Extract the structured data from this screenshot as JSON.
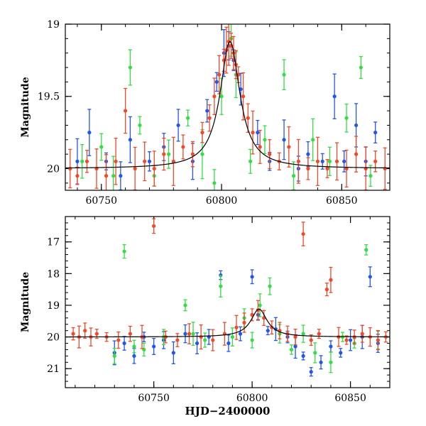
{
  "chart_data": [
    {
      "type": "scatter",
      "ylabel": "Magnitude",
      "xlabel": "",
      "xlim": [
        60735,
        60870
      ],
      "ylim": [
        19.0,
        20.15
      ],
      "y_inverted": true,
      "x_ticks": [
        60750,
        60800,
        60850
      ],
      "y_ticks": [
        19,
        19.5,
        20
      ],
      "x_tick_labels": [
        "60750",
        "60800",
        "60850"
      ],
      "y_tick_labels": [
        "19",
        "19.5",
        "20"
      ],
      "grid": false,
      "legend": "none",
      "model_curve": {
        "baseline_mag": 20.0,
        "peak_mag": 19.12,
        "peak_hjd": 60803.5,
        "timescale_days": 5
      },
      "series": [
        {
          "color": "#2255ee",
          "points": [
            [
              60740,
              19.95
            ],
            [
              60745,
              19.75
            ],
            [
              60752,
              19.95
            ],
            [
              60758,
              20.05
            ],
            [
              60762,
              19.8
            ],
            [
              60770,
              19.95
            ],
            [
              60776,
              19.85
            ],
            [
              60782,
              19.7
            ],
            [
              60788,
              19.95
            ],
            [
              60794,
              19.6
            ],
            [
              60798,
              19.4
            ],
            [
              60801,
              19.2
            ],
            [
              60803,
              19.15
            ],
            [
              60805,
              19.25
            ],
            [
              60808,
              19.45
            ],
            [
              60815,
              19.75
            ],
            [
              60820,
              19.95
            ],
            [
              60826,
              19.8
            ],
            [
              60832,
              20.0
            ],
            [
              60836,
              19.9
            ],
            [
              60842,
              19.95
            ],
            [
              60847,
              19.5
            ],
            [
              60851,
              19.95
            ],
            [
              60856,
              19.7
            ],
            [
              60860,
              19.95
            ],
            [
              60864,
              19.75
            ]
          ]
        },
        {
          "color": "#33dd44",
          "points": [
            [
              60742,
              19.95
            ],
            [
              60750,
              19.85
            ],
            [
              60755,
              20.05
            ],
            [
              60762,
              19.3
            ],
            [
              60766,
              19.7
            ],
            [
              60772,
              20.05
            ],
            [
              60778,
              19.9
            ],
            [
              60786,
              19.65
            ],
            [
              60792,
              19.9
            ],
            [
              60797,
              20.1
            ],
            [
              60800,
              19.5
            ],
            [
              60804,
              19.1
            ],
            [
              60806,
              19.35
            ],
            [
              60812,
              19.95
            ],
            [
              60818,
              19.8
            ],
            [
              60826,
              19.35
            ],
            [
              60830,
              20.05
            ],
            [
              60838,
              19.8
            ],
            [
              60845,
              19.95
            ],
            [
              60852,
              19.65
            ],
            [
              60858,
              19.3
            ],
            [
              60862,
              20.05
            ]
          ]
        },
        {
          "color": "#f04828",
          "points": [
            [
              60737,
              20.0
            ],
            [
              60740,
              20.05
            ],
            [
              60744,
              19.95
            ],
            [
              60748,
              20.0
            ],
            [
              60752,
              20.05
            ],
            [
              60756,
              19.95
            ],
            [
              60760,
              19.6
            ],
            [
              60764,
              20.0
            ],
            [
              60768,
              19.95
            ],
            [
              60772,
              20.0
            ],
            [
              60776,
              19.9
            ],
            [
              60780,
              19.95
            ],
            [
              60784,
              19.85
            ],
            [
              60788,
              19.9
            ],
            [
              60792,
              19.75
            ],
            [
              60795,
              19.65
            ],
            [
              60797,
              19.5
            ],
            [
              60799,
              19.35
            ],
            [
              60801,
              19.25
            ],
            [
              60802,
              19.18
            ],
            [
              60803,
              19.12
            ],
            [
              60804,
              19.15
            ],
            [
              60805,
              19.2
            ],
            [
              60806,
              19.28
            ],
            [
              60807,
              19.35
            ],
            [
              60809,
              19.5
            ],
            [
              60811,
              19.65
            ],
            [
              60813,
              19.75
            ],
            [
              60816,
              19.85
            ],
            [
              60820,
              19.9
            ],
            [
              60824,
              19.95
            ],
            [
              60828,
              19.85
            ],
            [
              60832,
              19.95
            ],
            [
              60836,
              20.0
            ],
            [
              60840,
              19.95
            ],
            [
              60844,
              20.0
            ],
            [
              60848,
              19.95
            ],
            [
              60852,
              20.0
            ],
            [
              60856,
              19.9
            ],
            [
              60860,
              20.0
            ],
            [
              60864,
              19.95
            ],
            [
              60868,
              20.0
            ]
          ]
        }
      ]
    },
    {
      "type": "scatter",
      "ylabel": "Magnitude",
      "xlabel": "HJD−2400000",
      "xlim": [
        60705,
        60870
      ],
      "ylim": [
        16.2,
        21.6
      ],
      "y_inverted": true,
      "x_ticks": [
        60750,
        60800,
        60850
      ],
      "y_ticks": [
        17,
        18,
        19,
        20,
        21
      ],
      "x_tick_labels": [
        "60750",
        "60800",
        "60850"
      ],
      "y_tick_labels": [
        "17",
        "18",
        "19",
        "20",
        "21"
      ],
      "grid": false,
      "legend": "none",
      "model_curve": {
        "baseline_mag": 20.0,
        "peak_mag": 19.12,
        "peak_hjd": 60803.5,
        "timescale_days": 5
      },
      "series": [
        {
          "color": "#2255ee",
          "points": [
            [
              60730,
              20.5
            ],
            [
              60735,
              20.2
            ],
            [
              60740,
              20.6
            ],
            [
              60745,
              20.0
            ],
            [
              60750,
              20.3
            ],
            [
              60755,
              20.1
            ],
            [
              60760,
              20.5
            ],
            [
              60766,
              19.9
            ],
            [
              60772,
              20.2
            ],
            [
              60778,
              20.0
            ],
            [
              60784,
              18.05
            ],
            [
              60788,
              20.2
            ],
            [
              60794,
              19.9
            ],
            [
              60800,
              18.1
            ],
            [
              60803,
              19.3
            ],
            [
              60808,
              19.8
            ],
            [
              60812,
              19.75
            ],
            [
              60818,
              20.0
            ],
            [
              60822,
              20.3
            ],
            [
              60826,
              20.6
            ],
            [
              60830,
              21.1
            ],
            [
              60835,
              20.8
            ],
            [
              60840,
              20.3
            ],
            [
              60845,
              20.5
            ],
            [
              60850,
              20.1
            ],
            [
              60856,
              20.0
            ],
            [
              60860,
              18.1
            ],
            [
              60864,
              20.2
            ]
          ]
        },
        {
          "color": "#33dd44",
          "points": [
            [
              60730,
              20.6
            ],
            [
              60735,
              17.3
            ],
            [
              60740,
              20.3
            ],
            [
              60745,
              20.4
            ],
            [
              60755,
              20.0
            ],
            [
              60766,
              19.0
            ],
            [
              60770,
              19.9
            ],
            [
              60776,
              20.1
            ],
            [
              60784,
              18.4
            ],
            [
              60790,
              20.0
            ],
            [
              60796,
              19.4
            ],
            [
              60800,
              20.1
            ],
            [
              60804,
              19.0
            ],
            [
              60809,
              18.4
            ],
            [
              60814,
              19.9
            ],
            [
              60820,
              20.4
            ],
            [
              60826,
              19.9
            ],
            [
              60832,
              20.5
            ],
            [
              60840,
              20.8
            ],
            [
              60846,
              20.0
            ],
            [
              60852,
              20.2
            ],
            [
              60858,
              17.25
            ],
            [
              60864,
              20.1
            ]
          ]
        },
        {
          "color": "#f04828",
          "points": [
            [
              60709,
              19.9
            ],
            [
              60712,
              20.0
            ],
            [
              60715,
              19.8
            ],
            [
              60718,
              20.0
            ],
            [
              60721,
              19.9
            ],
            [
              60726,
              20.0
            ],
            [
              60732,
              20.1
            ],
            [
              60738,
              19.9
            ],
            [
              60744,
              20.0
            ],
            [
              60750,
              16.5
            ],
            [
              60756,
              20.0
            ],
            [
              60762,
              20.1
            ],
            [
              60768,
              19.9
            ],
            [
              60774,
              20.0
            ],
            [
              60780,
              20.1
            ],
            [
              60786,
              19.9
            ],
            [
              60792,
              19.7
            ],
            [
              60796,
              19.55
            ],
            [
              60800,
              19.3
            ],
            [
              60803,
              19.15
            ],
            [
              60806,
              19.4
            ],
            [
              60810,
              19.7
            ],
            [
              60814,
              19.8
            ],
            [
              60818,
              19.9
            ],
            [
              60822,
              20.0
            ],
            [
              60826,
              16.75
            ],
            [
              60830,
              20.1
            ],
            [
              60834,
              19.9
            ],
            [
              60838,
              18.5
            ],
            [
              60840,
              18.2
            ],
            [
              60844,
              20.0
            ],
            [
              60848,
              20.1
            ],
            [
              60852,
              20.0
            ],
            [
              60856,
              19.9
            ],
            [
              60860,
              20.0
            ],
            [
              60864,
              20.1
            ],
            [
              60868,
              20.0
            ]
          ]
        }
      ]
    }
  ]
}
